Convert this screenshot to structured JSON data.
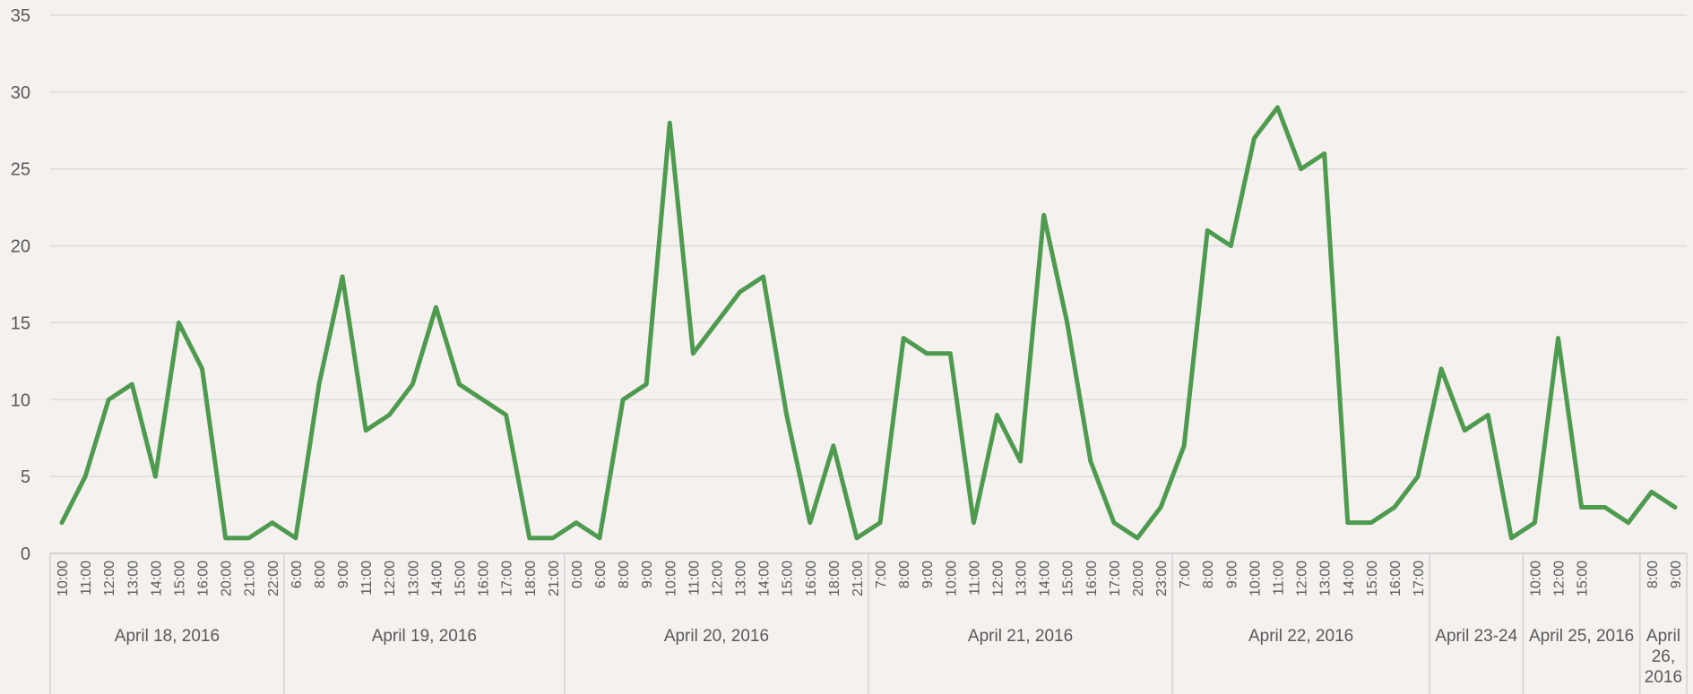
{
  "chart_data": {
    "type": "line",
    "color": "#4e9a4e",
    "grid": true,
    "ylim": [
      0,
      35
    ],
    "yticks": [
      0,
      5,
      10,
      15,
      20,
      25,
      30,
      35
    ],
    "groups": [
      {
        "name": "April 18, 2016",
        "categories": [
          "10:00",
          "11:00",
          "12:00",
          "13:00",
          "14:00",
          "15:00",
          "16:00",
          "20:00",
          "21:00",
          "22:00"
        ]
      },
      {
        "name": "April 19, 2016",
        "categories": [
          "6:00",
          "8:00",
          "9:00",
          "11:00",
          "12:00",
          "13:00",
          "14:00",
          "15:00",
          "16:00",
          "17:00",
          "18:00",
          "21:00"
        ]
      },
      {
        "name": "April 20, 2016",
        "categories": [
          "0:00",
          "6:00",
          "8:00",
          "9:00",
          "10:00",
          "11:00",
          "12:00",
          "13:00",
          "14:00",
          "15:00",
          "16:00",
          "18:00",
          "21:00"
        ]
      },
      {
        "name": "April 21, 2016",
        "categories": [
          "7:00",
          "8:00",
          "9:00",
          "10:00",
          "11:00",
          "12:00",
          "13:00",
          "14:00",
          "15:00",
          "16:00",
          "17:00",
          "20:00",
          "23:00"
        ]
      },
      {
        "name": "April 22, 2016",
        "categories": [
          "7:00",
          "8:00",
          "9:00",
          "10:00",
          "11:00",
          "12:00",
          "13:00",
          "14:00",
          "15:00",
          "16:00",
          "17:00"
        ]
      },
      {
        "name": "April 23-24",
        "categories": [
          null,
          null,
          null,
          null
        ]
      },
      {
        "name": "April 25, 2016",
        "categories": [
          "10:00",
          "12:00",
          "15:00",
          null,
          null
        ]
      },
      {
        "name": "April 26, 2016",
        "categories": [
          "8:00",
          "9:00"
        ]
      }
    ],
    "values": [
      2,
      5,
      10,
      11,
      5,
      15,
      12,
      1,
      1,
      2,
      1,
      11,
      18,
      8,
      9,
      11,
      16,
      11,
      10,
      9,
      1,
      1,
      2,
      1,
      10,
      11,
      28,
      13,
      15,
      17,
      18,
      9,
      2,
      7,
      1,
      2,
      14,
      13,
      13,
      2,
      9,
      6,
      22,
      15,
      6,
      2,
      1,
      3,
      7,
      21,
      20,
      27,
      29,
      25,
      26,
      2,
      2,
      3,
      5,
      12,
      8,
      9,
      1,
      2,
      14,
      3,
      3,
      2,
      4,
      3
    ]
  }
}
